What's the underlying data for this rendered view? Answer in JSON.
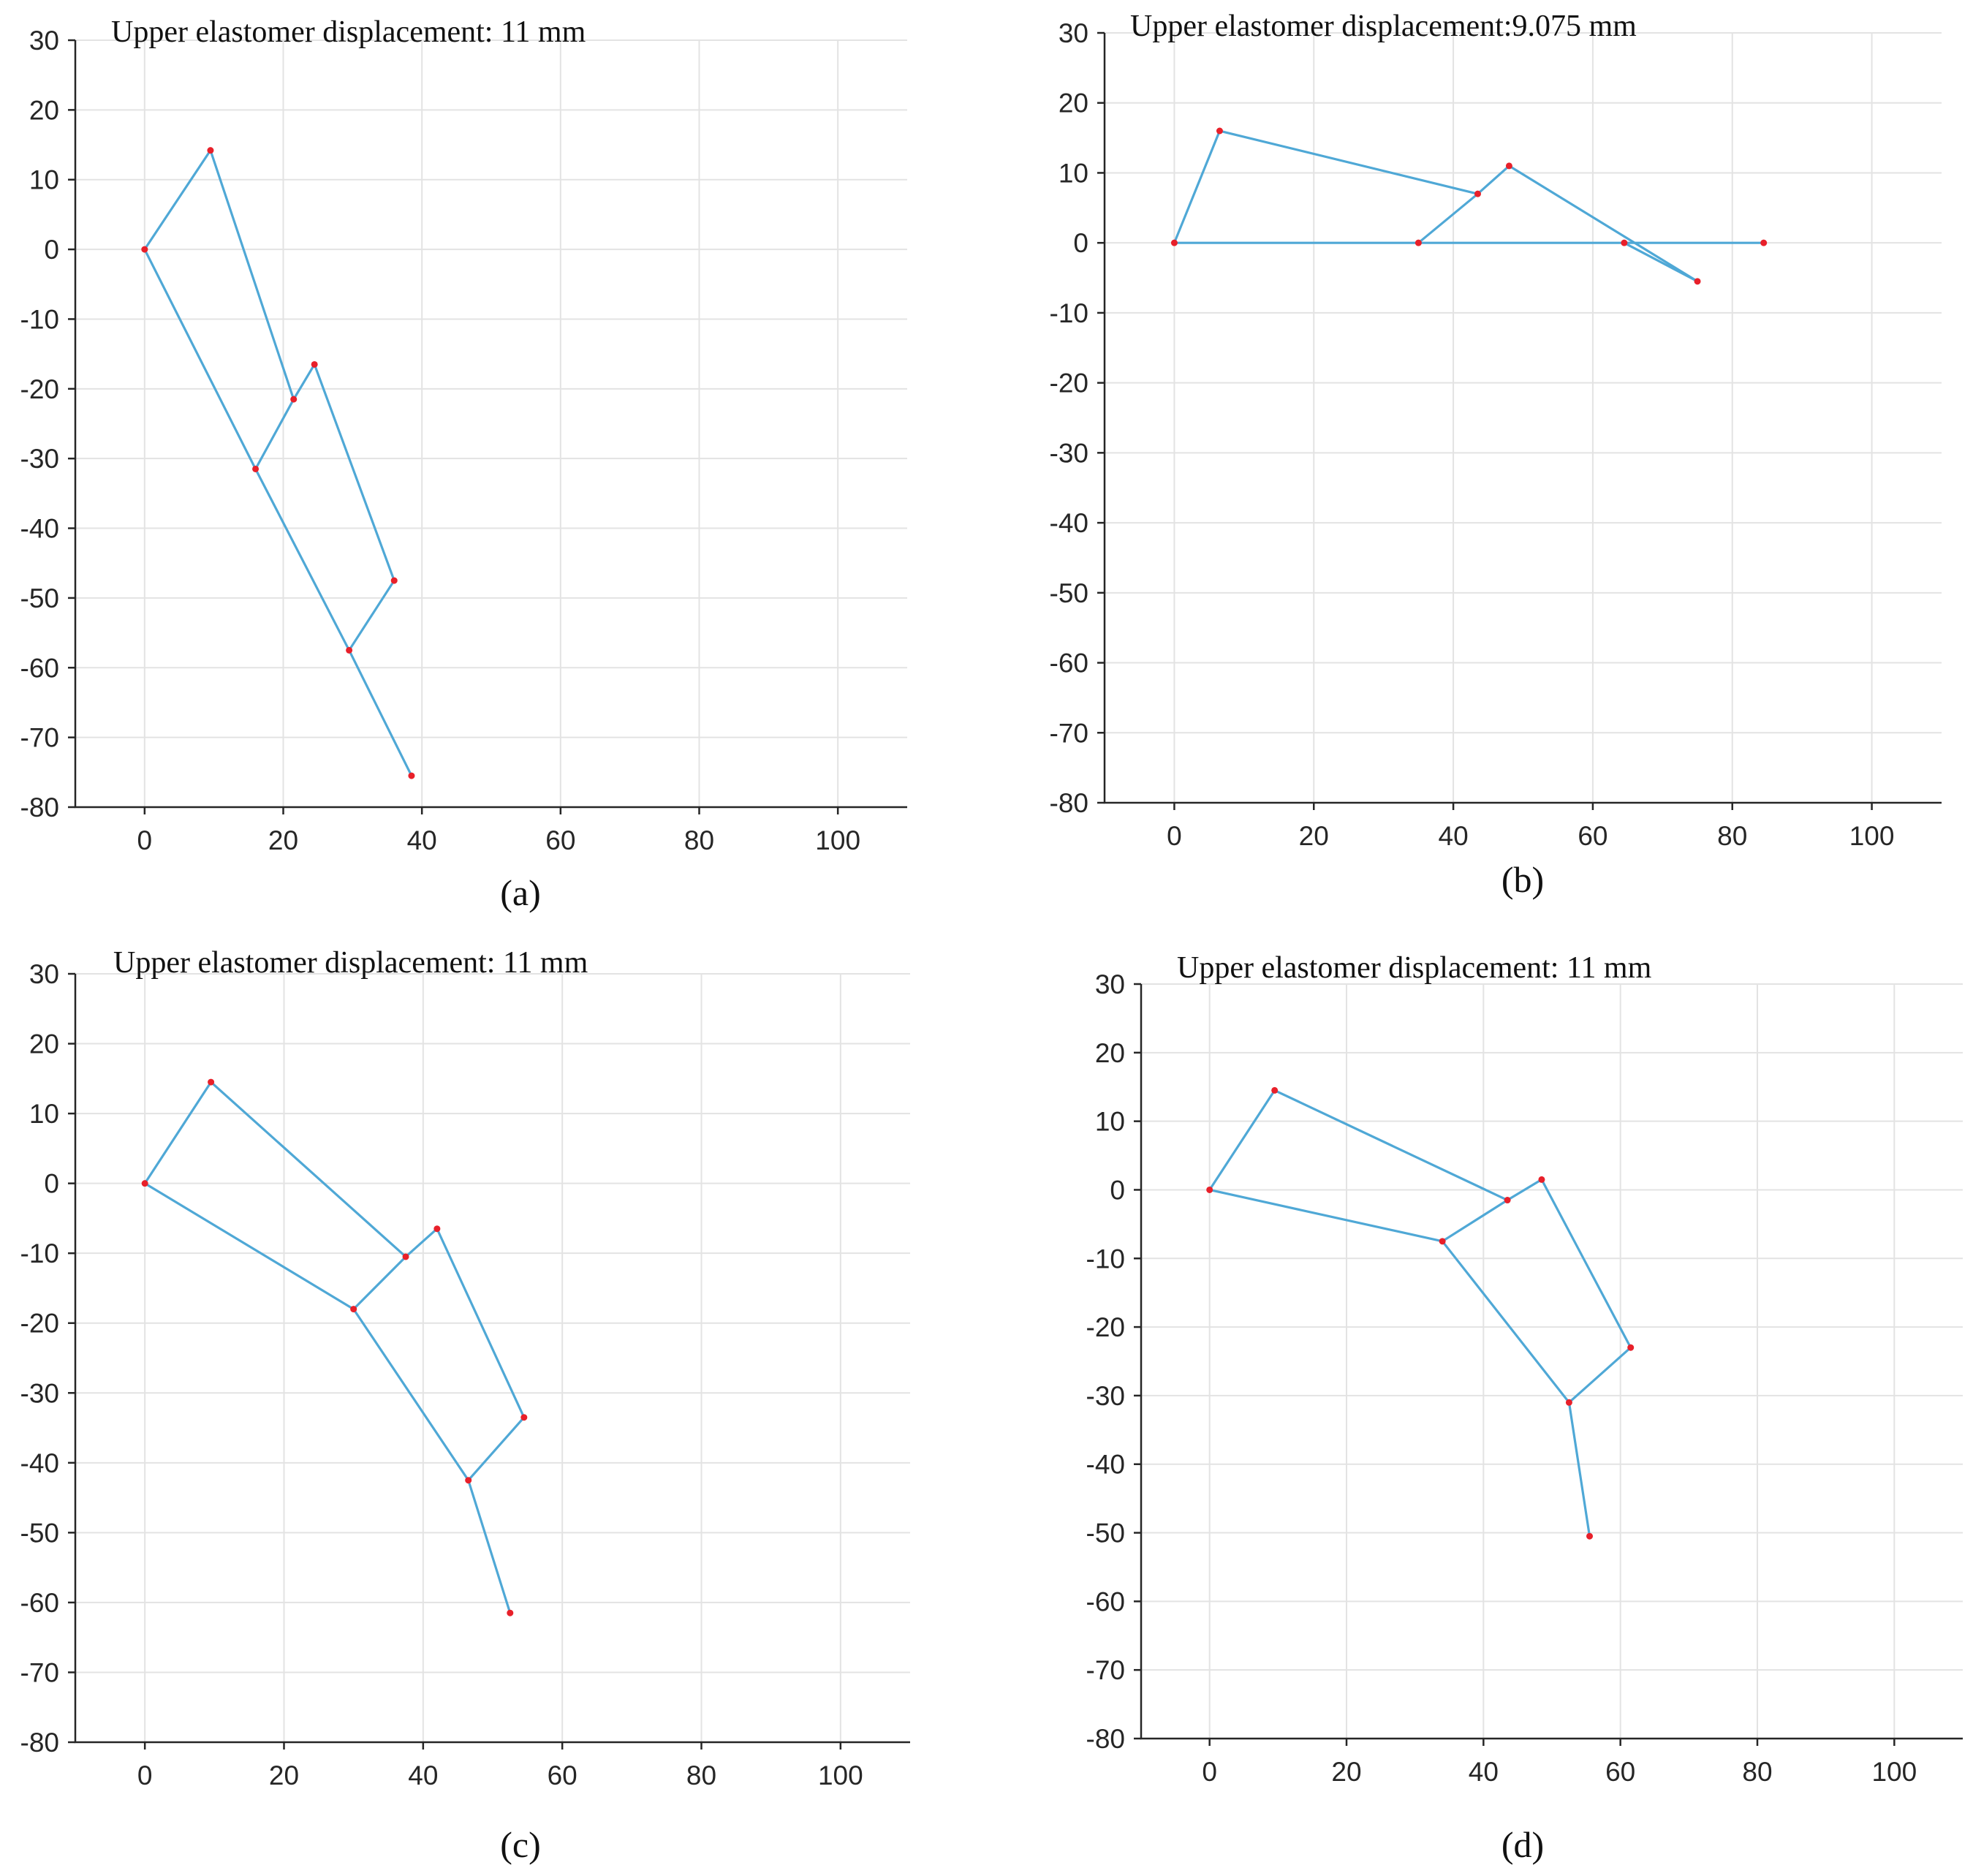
{
  "chart_data": [
    {
      "panel": "a",
      "type": "line",
      "title": "Upper elastomer displacement: 11 mm",
      "caption": "(a)",
      "xlim": [
        -10,
        110
      ],
      "ylim": [
        -80,
        30
      ],
      "xticks": [
        0,
        20,
        40,
        60,
        80,
        100
      ],
      "yticks": [
        30,
        20,
        10,
        0,
        -10,
        -20,
        -30,
        -40,
        -50,
        -60,
        -70,
        -80
      ],
      "grid": true,
      "xlabel": "",
      "ylabel": "",
      "nodes": [
        {
          "x": 0,
          "y": 0
        },
        {
          "x": 9.5,
          "y": 14.2
        },
        {
          "x": 21.5,
          "y": -21.5
        },
        {
          "x": 24.5,
          "y": -16.5
        },
        {
          "x": 16,
          "y": -31.5
        },
        {
          "x": 36,
          "y": -47.5
        },
        {
          "x": 29.5,
          "y": -57.5
        },
        {
          "x": 38.5,
          "y": -75.5
        }
      ],
      "links": [
        [
          0,
          1
        ],
        [
          1,
          2
        ],
        [
          2,
          3
        ],
        [
          0,
          4
        ],
        [
          4,
          2
        ],
        [
          3,
          5
        ],
        [
          5,
          6
        ],
        [
          4,
          6
        ],
        [
          6,
          7
        ]
      ]
    },
    {
      "panel": "b",
      "type": "line",
      "title": "Upper elastomer displacement:9.075 mm",
      "caption": "(b)",
      "xlim": [
        -10,
        110
      ],
      "ylim": [
        -80,
        30
      ],
      "xticks": [
        0,
        20,
        40,
        60,
        80,
        100
      ],
      "yticks": [
        30,
        20,
        10,
        0,
        -10,
        -20,
        -30,
        -40,
        -50,
        -60,
        -70,
        -80
      ],
      "grid": true,
      "xlabel": "",
      "ylabel": "",
      "nodes": [
        {
          "x": 0,
          "y": 0
        },
        {
          "x": 6.5,
          "y": 16
        },
        {
          "x": 43.5,
          "y": 7
        },
        {
          "x": 48,
          "y": 11
        },
        {
          "x": 35,
          "y": 0
        },
        {
          "x": 64.5,
          "y": 0
        },
        {
          "x": 75,
          "y": -5.5
        },
        {
          "x": 84.5,
          "y": 0
        }
      ],
      "links": [
        [
          0,
          1
        ],
        [
          1,
          2
        ],
        [
          2,
          3
        ],
        [
          4,
          2
        ],
        [
          0,
          7
        ],
        [
          3,
          6
        ],
        [
          5,
          6
        ]
      ]
    },
    {
      "panel": "c",
      "type": "line",
      "title": "Upper elastomer displacement: 11 mm",
      "caption": "(c)",
      "xlim": [
        -10,
        110
      ],
      "ylim": [
        -80,
        30
      ],
      "xticks": [
        0,
        20,
        40,
        60,
        80,
        100
      ],
      "yticks": [
        30,
        20,
        10,
        0,
        -10,
        -20,
        -30,
        -40,
        -50,
        -60,
        -70,
        -80
      ],
      "grid": true,
      "xlabel": "",
      "ylabel": "",
      "nodes": [
        {
          "x": 0,
          "y": 0
        },
        {
          "x": 9.5,
          "y": 14.5
        },
        {
          "x": 37.5,
          "y": -10.5
        },
        {
          "x": 42,
          "y": -6.5
        },
        {
          "x": 30,
          "y": -18
        },
        {
          "x": 54.5,
          "y": -33.5
        },
        {
          "x": 46.5,
          "y": -42.5
        },
        {
          "x": 52.5,
          "y": -61.5
        }
      ],
      "links": [
        [
          0,
          1
        ],
        [
          1,
          2
        ],
        [
          2,
          3
        ],
        [
          0,
          4
        ],
        [
          4,
          2
        ],
        [
          3,
          5
        ],
        [
          5,
          6
        ],
        [
          4,
          6
        ],
        [
          6,
          7
        ]
      ]
    },
    {
      "panel": "d",
      "type": "line",
      "title": "Upper elastomer displacement: 11 mm",
      "caption": "(d)",
      "xlim": [
        -10,
        110
      ],
      "ylim": [
        -80,
        30
      ],
      "xticks": [
        0,
        20,
        40,
        60,
        80,
        100
      ],
      "yticks": [
        30,
        20,
        10,
        0,
        -10,
        -20,
        -30,
        -40,
        -50,
        -60,
        -70,
        -80
      ],
      "grid": true,
      "xlabel": "",
      "ylabel": "",
      "nodes": [
        {
          "x": 0,
          "y": 0
        },
        {
          "x": 9.5,
          "y": 14.5
        },
        {
          "x": 43.5,
          "y": -1.5
        },
        {
          "x": 48.5,
          "y": 1.5
        },
        {
          "x": 34,
          "y": -7.5
        },
        {
          "x": 61.5,
          "y": -23
        },
        {
          "x": 52.5,
          "y": -31
        },
        {
          "x": 55.5,
          "y": -50.5
        }
      ],
      "links": [
        [
          0,
          1
        ],
        [
          1,
          2
        ],
        [
          2,
          3
        ],
        [
          0,
          4
        ],
        [
          4,
          2
        ],
        [
          3,
          5
        ],
        [
          5,
          6
        ],
        [
          4,
          6
        ],
        [
          6,
          7
        ]
      ]
    }
  ]
}
